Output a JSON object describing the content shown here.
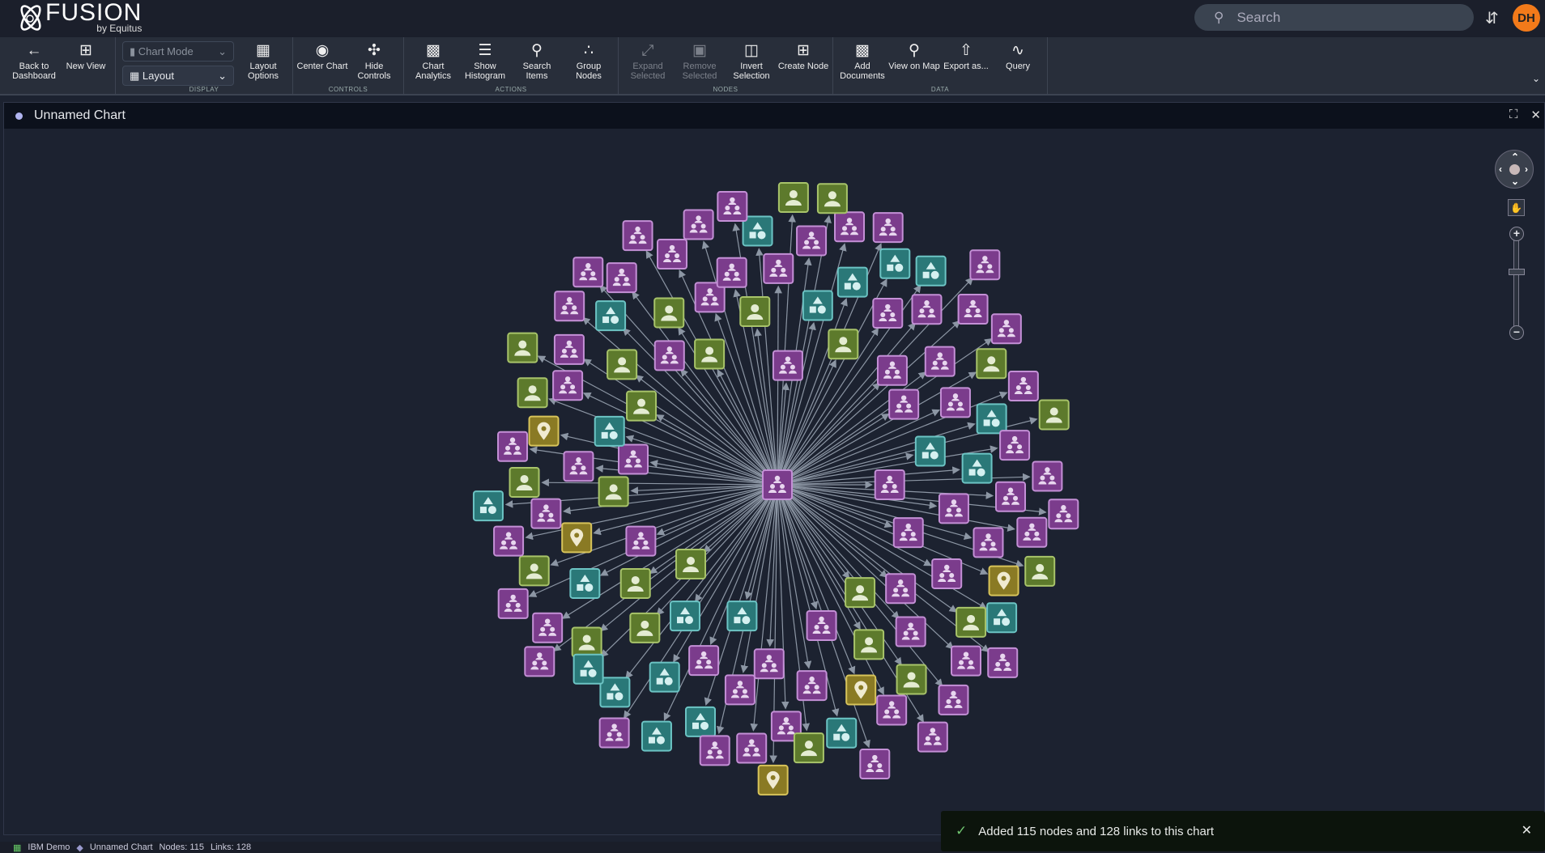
{
  "app": {
    "brand": "FUSION",
    "brand_sub": "by Equitus",
    "search_placeholder": "Search",
    "user_initials": "DH",
    "accent": "#f27a1a"
  },
  "toolbar": {
    "groups": [
      {
        "label": "",
        "items": [
          {
            "label": "Back to Dashboard",
            "icon": "arrow-left-icon"
          },
          {
            "label": "New View",
            "icon": "plus-square-icon"
          }
        ]
      },
      {
        "label": "DISPLAY",
        "dropdowns": [
          "Chart Mode",
          "Layout"
        ],
        "items": [
          {
            "label": "Layout Options",
            "icon": "layout-gear-icon"
          }
        ]
      },
      {
        "label": "CONTROLS",
        "items": [
          {
            "label": "Center Chart",
            "icon": "center-focus-icon"
          },
          {
            "label": "Hide Controls",
            "icon": "controls-icon"
          }
        ]
      },
      {
        "label": "ACTIONS",
        "items": [
          {
            "label": "Chart Analytics",
            "icon": "bar-chart-icon"
          },
          {
            "label": "Show Histogram",
            "icon": "histogram-icon"
          },
          {
            "label": "Search Items",
            "icon": "search-icon"
          },
          {
            "label": "Group Nodes",
            "icon": "group-nodes-icon"
          }
        ]
      },
      {
        "label": "NODES",
        "items": [
          {
            "label": "Expand Selected",
            "icon": "expand-icon",
            "disabled": true
          },
          {
            "label": "Remove Selected",
            "icon": "remove-icon",
            "disabled": true
          },
          {
            "label": "Invert Selection",
            "icon": "invert-icon"
          },
          {
            "label": "Create Node",
            "icon": "plus-box-icon"
          }
        ]
      },
      {
        "label": "DATA",
        "items": [
          {
            "label": "Add Documents",
            "icon": "add-docs-icon"
          },
          {
            "label": "View on Map",
            "icon": "map-pin-icon"
          },
          {
            "label": "Export as...",
            "icon": "upload-icon"
          },
          {
            "label": "Query",
            "icon": "query-icon"
          }
        ]
      }
    ]
  },
  "chart": {
    "title": "Unnamed Chart",
    "node_types": [
      {
        "type": "organization",
        "count": 63,
        "fill": "#7b3c8c",
        "border": "#c490d6"
      },
      {
        "type": "person",
        "count": 25,
        "fill": "#5d7a2c",
        "border": "#a8c46a"
      },
      {
        "type": "group",
        "count": 21,
        "fill": "#2a7878",
        "border": "#6cc4c4"
      },
      {
        "type": "location",
        "count": 5,
        "fill": "#8a7a24",
        "border": "#d8c45a"
      }
    ],
    "hub_type": "organization",
    "link_color": "#8c96a4"
  },
  "status": {
    "workspace": "IBM Demo",
    "chart": "Unnamed Chart",
    "nodes": "Nodes: 115",
    "links": "Links: 128"
  },
  "toast": {
    "message": "Added 115 nodes and 128 links to this chart"
  }
}
